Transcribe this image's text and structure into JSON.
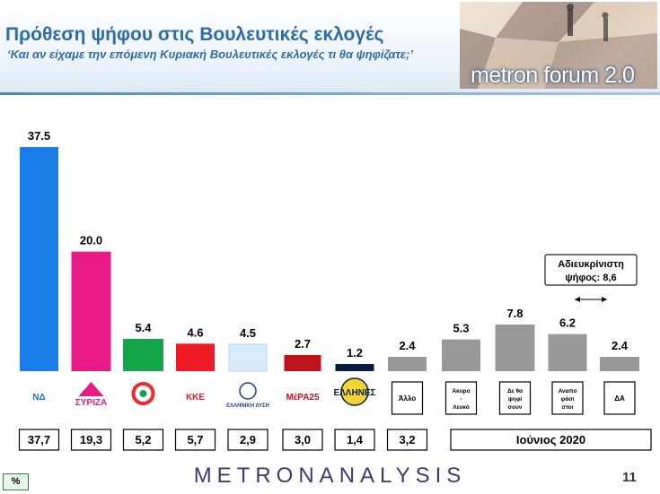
{
  "header": {
    "title": "Πρόθεση ψήφου στις Βουλευτικές εκλογές",
    "subtitle": "‘Και αν είχαμε την επόμενη Κυριακή Βουλευτικές εκλογές τι θα ψηφίζατε;’",
    "logo_text": "metron forum 2.0"
  },
  "chart_data": {
    "type": "bar",
    "categories": [
      "ΝΔ",
      "ΣΥΡΙΖΑ",
      "ΚΙΝΑΛ",
      "ΚΚΕ",
      "ΕΛΛΗΝΙΚΗ ΛΥΣΗ",
      "ΜέΡΑ25",
      "ΕΛΛΗΝΕΣ",
      "Άλλο",
      "Άκυρο - Λευκό",
      "Δε θα ψηφίσουν",
      "Αναποφάσιστοι",
      "ΔΑ"
    ],
    "values": [
      37.5,
      20.0,
      5.4,
      4.6,
      4.5,
      2.7,
      1.2,
      2.4,
      5.3,
      7.8,
      6.2,
      2.4
    ],
    "value_labels": [
      "37.5",
      "20.0",
      "5.4",
      "4.6",
      "4.5",
      "2.7",
      "1.2",
      "2.4",
      "5.3",
      "7.8",
      "6.2",
      "2.4"
    ],
    "colors": [
      "#1a7ee8",
      "#e71a86",
      "#16a64a",
      "#ee1b24",
      "#d8ebfb",
      "#c0121b",
      "#0b1d3d",
      "#999999",
      "#999999",
      "#999999",
      "#999999",
      "#999999"
    ],
    "party_logos": [
      "ΝΔ",
      "ΣΥΡΙΖΑ",
      "",
      "ΚΚΕ",
      "ΕΛΛΗΝΙΚΗ ΛΥΣΗ",
      "ΜέΡΑ25",
      "ΕΛΛΗΝΕΣ"
    ],
    "box_labels": [
      {
        "index": 7,
        "lines": [
          "Άλλο"
        ]
      },
      {
        "index": 8,
        "lines": [
          "Άκυρο",
          "-",
          "Λευκό"
        ]
      },
      {
        "index": 9,
        "lines": [
          "Δε θα",
          "ψηφί",
          "σουν"
        ]
      },
      {
        "index": 10,
        "lines": [
          "Αναπο",
          "φάσι",
          "στοι"
        ]
      },
      {
        "index": 11,
        "lines": [
          "ΔΑ"
        ]
      }
    ],
    "previous_values": [
      "37,7",
      "19,3",
      "5,2",
      "5,7",
      "2,9",
      "3,0",
      "1,4",
      "3,2"
    ],
    "previous_label": "Ιούνιος 2020",
    "annotation": {
      "lines": [
        "Αδιευκρίνιστη",
        "ψήφος: 8,6"
      ],
      "spans": [
        10,
        11
      ]
    }
  },
  "footer": {
    "logo": "METRONANALYSIS",
    "page": "11",
    "badge": "%"
  }
}
